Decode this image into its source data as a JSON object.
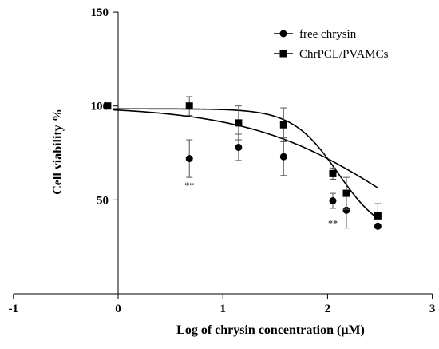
{
  "chart_data": {
    "type": "scatter",
    "xlabel": "Log of chrysin concentration (μM)",
    "ylabel": "Cell viability %",
    "xlim": [
      -1,
      3
    ],
    "ylim": [
      0,
      150
    ],
    "x_ticks": [
      "-1",
      "0",
      "1",
      "2",
      "3"
    ],
    "y_ticks": [
      "50",
      "100",
      "150"
    ],
    "grid": false,
    "legend_position": "top-right",
    "series": [
      {
        "name": "free chrysin",
        "marker": "circle",
        "color": "#000000",
        "points": [
          {
            "x": 0.68,
            "y": 72,
            "err": 10
          },
          {
            "x": 1.15,
            "y": 78,
            "err": 7
          },
          {
            "x": 1.58,
            "y": 73,
            "err": 10
          },
          {
            "x": 2.05,
            "y": 49.5,
            "err": 4
          },
          {
            "x": 2.18,
            "y": 44.5,
            "err": 9.5
          },
          {
            "x": 2.48,
            "y": 36,
            "err": 0
          }
        ],
        "fit": {
          "top": 100,
          "bottom": 0,
          "logEC50": 2.66,
          "hill": 0.62
        }
      },
      {
        "name": "ChrPCL/PVAMCs",
        "marker": "square",
        "color": "#000000",
        "points": [
          {
            "x": -0.1,
            "y": 100,
            "err": 0
          },
          {
            "x": 0.68,
            "y": 100,
            "err": 5
          },
          {
            "x": 1.15,
            "y": 91,
            "err": 9
          },
          {
            "x": 1.58,
            "y": 90,
            "err": 9
          },
          {
            "x": 2.05,
            "y": 64,
            "err": 3
          },
          {
            "x": 2.18,
            "y": 53.5,
            "err": 8.5
          },
          {
            "x": 2.48,
            "y": 41.5,
            "err": 6.5
          }
        ],
        "fit": {
          "top": 98.5,
          "bottom": 30,
          "logEC50": 2.1,
          "hill": 2.0
        }
      }
    ],
    "annotations": [
      {
        "text": "**",
        "x": 0.68,
        "y": 56
      },
      {
        "text": "**",
        "x": 2.05,
        "y": 36
      }
    ]
  }
}
